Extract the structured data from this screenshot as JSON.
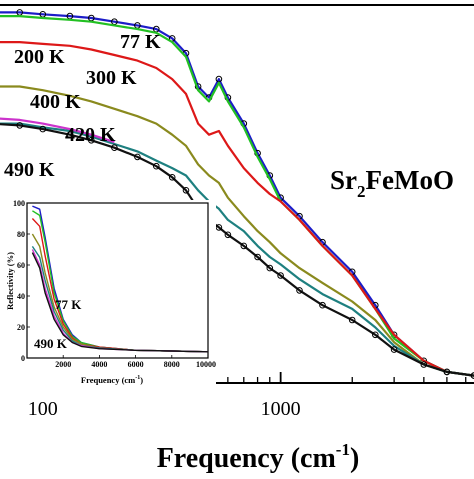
{
  "main": {
    "chart_data": {
      "type": "line",
      "xlabel": "Frequency (cm",
      "xlabel_sup": "-1",
      "xlabel_close": ")",
      "xscale": "log",
      "xlim": [
        60,
        6500
      ],
      "ylim": [
        0,
        1.02
      ],
      "x_ticks": [
        100,
        1000
      ],
      "x_tick_labels": [
        "100",
        "1000"
      ],
      "compound_label": {
        "base": "Sr",
        "sub": "2",
        "rest": "FeMoO"
      },
      "series": [
        {
          "name": "77 K",
          "color": "#1c1cc8",
          "marker": "circle",
          "points": [
            [
              60,
              1.0
            ],
            [
              80,
              1.0
            ],
            [
              100,
              0.995
            ],
            [
              130,
              0.99
            ],
            [
              160,
              0.985
            ],
            [
              200,
              0.975
            ],
            [
              250,
              0.965
            ],
            [
              300,
              0.955
            ],
            [
              350,
              0.93
            ],
            [
              400,
              0.89
            ],
            [
              450,
              0.8
            ],
            [
              500,
              0.77
            ],
            [
              550,
              0.82
            ],
            [
              600,
              0.77
            ],
            [
              700,
              0.7
            ],
            [
              800,
              0.62
            ],
            [
              900,
              0.56
            ],
            [
              1000,
              0.5
            ],
            [
              1200,
              0.45
            ],
            [
              1500,
              0.38
            ],
            [
              2000,
              0.3
            ],
            [
              2500,
              0.21
            ],
            [
              3000,
              0.13
            ],
            [
              4000,
              0.06
            ],
            [
              5000,
              0.03
            ],
            [
              6500,
              0.02
            ]
          ]
        },
        {
          "name": "200 K",
          "color": "#22c022",
          "marker": "none",
          "points": [
            [
              60,
              0.99
            ],
            [
              80,
              0.99
            ],
            [
              100,
              0.985
            ],
            [
              130,
              0.98
            ],
            [
              160,
              0.975
            ],
            [
              200,
              0.965
            ],
            [
              250,
              0.955
            ],
            [
              300,
              0.945
            ],
            [
              350,
              0.92
            ],
            [
              400,
              0.88
            ],
            [
              450,
              0.79
            ],
            [
              500,
              0.76
            ],
            [
              550,
              0.81
            ],
            [
              600,
              0.76
            ],
            [
              700,
              0.69
            ],
            [
              800,
              0.61
            ],
            [
              900,
              0.55
            ],
            [
              1000,
              0.49
            ],
            [
              1200,
              0.44
            ],
            [
              1500,
              0.37
            ],
            [
              2000,
              0.29
            ],
            [
              2500,
              0.2
            ],
            [
              3000,
              0.12
            ],
            [
              4000,
              0.06
            ],
            [
              5000,
              0.03
            ],
            [
              6500,
              0.02
            ]
          ]
        },
        {
          "name": "300 K",
          "color": "#dd1818",
          "marker": "none",
          "points": [
            [
              60,
              0.92
            ],
            [
              80,
              0.92
            ],
            [
              100,
              0.915
            ],
            [
              130,
              0.91
            ],
            [
              160,
              0.9
            ],
            [
              200,
              0.885
            ],
            [
              250,
              0.87
            ],
            [
              300,
              0.85
            ],
            [
              350,
              0.82
            ],
            [
              400,
              0.78
            ],
            [
              450,
              0.7
            ],
            [
              500,
              0.67
            ],
            [
              550,
              0.68
            ],
            [
              600,
              0.64
            ],
            [
              700,
              0.58
            ],
            [
              800,
              0.54
            ],
            [
              900,
              0.51
            ],
            [
              1000,
              0.49
            ],
            [
              1200,
              0.44
            ],
            [
              1500,
              0.37
            ],
            [
              2000,
              0.29
            ],
            [
              2500,
              0.2
            ],
            [
              3000,
              0.13
            ],
            [
              4000,
              0.06
            ],
            [
              5000,
              0.03
            ],
            [
              6500,
              0.02
            ]
          ]
        },
        {
          "name": "400 K",
          "color": "#8a8a1e",
          "marker": "none",
          "points": [
            [
              60,
              0.8
            ],
            [
              80,
              0.8
            ],
            [
              100,
              0.79
            ],
            [
              130,
              0.775
            ],
            [
              160,
              0.76
            ],
            [
              200,
              0.74
            ],
            [
              250,
              0.72
            ],
            [
              300,
              0.7
            ],
            [
              350,
              0.67
            ],
            [
              400,
              0.64
            ],
            [
              450,
              0.59
            ],
            [
              500,
              0.56
            ],
            [
              550,
              0.54
            ],
            [
              600,
              0.5
            ],
            [
              700,
              0.45
            ],
            [
              800,
              0.41
            ],
            [
              900,
              0.38
            ],
            [
              1000,
              0.35
            ],
            [
              1200,
              0.31
            ],
            [
              1500,
              0.27
            ],
            [
              2000,
              0.22
            ],
            [
              2500,
              0.17
            ],
            [
              3000,
              0.11
            ],
            [
              4000,
              0.05
            ],
            [
              5000,
              0.03
            ],
            [
              6500,
              0.02
            ]
          ]
        },
        {
          "name": "420 K",
          "color": "#1e8080",
          "marker": "none",
          "points": [
            [
              60,
              0.7
            ],
            [
              80,
              0.7
            ],
            [
              100,
              0.69
            ],
            [
              130,
              0.68
            ],
            [
              160,
              0.665
            ],
            [
              200,
              0.645
            ],
            [
              250,
              0.625
            ],
            [
              300,
              0.6
            ],
            [
              350,
              0.58
            ],
            [
              400,
              0.56
            ],
            [
              450,
              0.52
            ],
            [
              500,
              0.49
            ],
            [
              550,
              0.47
            ],
            [
              600,
              0.44
            ],
            [
              700,
              0.41
            ],
            [
              800,
              0.37
            ],
            [
              900,
              0.34
            ],
            [
              1000,
              0.32
            ],
            [
              1200,
              0.28
            ],
            [
              1500,
              0.24
            ],
            [
              2000,
              0.2
            ],
            [
              2500,
              0.15
            ],
            [
              3000,
              0.1
            ],
            [
              4000,
              0.05
            ],
            [
              5000,
              0.03
            ],
            [
              6500,
              0.02
            ]
          ]
        },
        {
          "name": "490 K",
          "color": "#111111",
          "marker": "circle",
          "points": [
            [
              60,
              0.7
            ],
            [
              80,
              0.695
            ],
            [
              100,
              0.685
            ],
            [
              130,
              0.67
            ],
            [
              160,
              0.655
            ],
            [
              200,
              0.635
            ],
            [
              250,
              0.61
            ],
            [
              300,
              0.585
            ],
            [
              350,
              0.555
            ],
            [
              400,
              0.52
            ],
            [
              450,
              0.47
            ],
            [
              500,
              0.44
            ],
            [
              550,
              0.42
            ],
            [
              600,
              0.4
            ],
            [
              700,
              0.37
            ],
            [
              800,
              0.34
            ],
            [
              900,
              0.31
            ],
            [
              1000,
              0.29
            ],
            [
              1200,
              0.25
            ],
            [
              1500,
              0.21
            ],
            [
              2000,
              0.17
            ],
            [
              2500,
              0.13
            ],
            [
              3000,
              0.09
            ],
            [
              4000,
              0.05
            ],
            [
              5000,
              0.03
            ],
            [
              6500,
              0.02
            ]
          ]
        },
        {
          "name": "",
          "color": "#cc33cc",
          "marker": "none",
          "points": [
            [
              60,
              0.715
            ],
            [
              80,
              0.71
            ],
            [
              100,
              0.7
            ],
            [
              130,
              0.685
            ],
            [
              160,
              0.67
            ],
            [
              200,
              0.65
            ]
          ]
        }
      ]
    }
  },
  "inset": {
    "chart_data": {
      "type": "line",
      "xlabel": "Frequency (cm",
      "xlabel_sup": "-1",
      "xlabel_close": ")",
      "ylabel": "Reflectivity (%)",
      "xlim": [
        0,
        10000
      ],
      "ylim": [
        0,
        100
      ],
      "x_ticks": [
        2000,
        4000,
        6000,
        8000,
        10000
      ],
      "x_tick_labels": [
        "2000",
        "4000",
        "6000",
        "8000",
        "10000"
      ],
      "y_ticks": [
        0,
        20,
        40,
        60,
        80,
        100
      ],
      "y_tick_labels": [
        "0",
        "20",
        "40",
        "60",
        "80",
        "100"
      ],
      "annotations": [
        "77 K",
        "490 K"
      ],
      "series": [
        {
          "color": "#1c1cc8",
          "points": [
            [
              300,
              98
            ],
            [
              700,
              96
            ],
            [
              1000,
              78
            ],
            [
              1500,
              45
            ],
            [
              2000,
              25
            ],
            [
              2500,
              15
            ],
            [
              3000,
              10
            ],
            [
              4000,
              7
            ],
            [
              6000,
              5
            ],
            [
              8000,
              4.5
            ],
            [
              10000,
              4
            ]
          ]
        },
        {
          "color": "#22c022",
          "points": [
            [
              300,
              95
            ],
            [
              700,
              92
            ],
            [
              1000,
              75
            ],
            [
              1500,
              42
            ],
            [
              2000,
              24
            ],
            [
              2500,
              14
            ],
            [
              3000,
              10
            ],
            [
              4000,
              7
            ],
            [
              6000,
              5
            ],
            [
              8000,
              4.5
            ],
            [
              10000,
              4
            ]
          ]
        },
        {
          "color": "#dd1818",
          "points": [
            [
              300,
              90
            ],
            [
              700,
              85
            ],
            [
              1000,
              66
            ],
            [
              1500,
              38
            ],
            [
              2000,
              22
            ],
            [
              2500,
              13
            ],
            [
              3000,
              9
            ],
            [
              4000,
              7
            ],
            [
              6000,
              5
            ],
            [
              8000,
              4.5
            ],
            [
              10000,
              4
            ]
          ]
        },
        {
          "color": "#8a8a1e",
          "points": [
            [
              300,
              80
            ],
            [
              700,
              72
            ],
            [
              1000,
              55
            ],
            [
              1500,
              33
            ],
            [
              2000,
              20
            ],
            [
              2500,
              12
            ],
            [
              3000,
              9
            ],
            [
              4000,
              6.5
            ],
            [
              6000,
              5
            ],
            [
              8000,
              4.5
            ],
            [
              10000,
              4
            ]
          ]
        },
        {
          "color": "#1e8080",
          "points": [
            [
              300,
              72
            ],
            [
              700,
              65
            ],
            [
              1000,
              50
            ],
            [
              1500,
              30
            ],
            [
              2000,
              18
            ],
            [
              2500,
              11
            ],
            [
              3000,
              8
            ],
            [
              4000,
              6.5
            ],
            [
              6000,
              5
            ],
            [
              8000,
              4.5
            ],
            [
              10000,
              4
            ]
          ]
        },
        {
          "color": "#cc33cc",
          "points": [
            [
              300,
              70
            ],
            [
              700,
              60
            ],
            [
              1000,
              45
            ],
            [
              1500,
              27
            ],
            [
              2000,
              16
            ],
            [
              2500,
              10
            ],
            [
              3000,
              8
            ],
            [
              4000,
              6
            ],
            [
              6000,
              5
            ],
            [
              8000,
              4.5
            ],
            [
              10000,
              4
            ]
          ]
        },
        {
          "color": "#111111",
          "points": [
            [
              300,
              68
            ],
            [
              700,
              58
            ],
            [
              1000,
              42
            ],
            [
              1500,
              25
            ],
            [
              2000,
              15
            ],
            [
              2500,
              10
            ],
            [
              3000,
              7.5
            ],
            [
              4000,
              6
            ],
            [
              6000,
              5
            ],
            [
              8000,
              4.5
            ],
            [
              10000,
              4
            ]
          ]
        }
      ]
    }
  }
}
